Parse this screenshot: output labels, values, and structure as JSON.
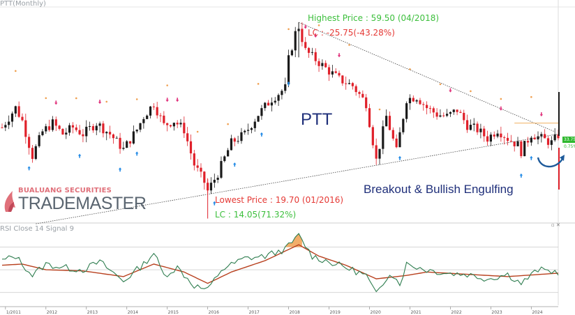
{
  "header": {
    "top_label": "PTT(Monthly)",
    "rsi_label": "RSI Close 14 Signal 9",
    "corner_controls": "▫ ✕"
  },
  "annotations": {
    "highest": "Highest Price : 59.50 (04/2018)",
    "highest_lc": "LC : -25.75(-43.28%)",
    "lowest": "Lowest Price : 19.70 (01/2016)",
    "lowest_lc": "LC : 14.05(71.32%)",
    "ticker": "PTT",
    "pattern": "Breakout & Bullish Engulfing"
  },
  "brand": {
    "line1": "BUALUANG SECURITIES",
    "line2": "TRADEMASTER"
  },
  "price_tags": {
    "last": "33.75",
    "pct": "0.75%"
  },
  "colors": {
    "up": "#1a1a1a",
    "down": "#e0202a",
    "rsi": "#2e7d4f",
    "signal": "#b8401e",
    "trend": "#444444",
    "overbought_fill": "#f0a050",
    "arrow_blue": "#1e88e5",
    "arrow_pink": "#e0307a",
    "swoosh": "#1e5a9a"
  },
  "chart_data": [
    {
      "type": "candlestick",
      "title": "PTT(Monthly)",
      "x_range": [
        "2010-12",
        "2024-09"
      ],
      "y_range": [
        14,
        63
      ],
      "x_ticks": [
        "1/2011",
        "2012",
        "2013",
        "2014",
        "2015",
        "2016",
        "2017",
        "2018",
        "2019",
        "2020",
        "2021",
        "2022",
        "2023",
        "2024"
      ],
      "last_price": 33.75,
      "highest": {
        "date": "2018-04",
        "price": 59.5
      },
      "lowest": {
        "date": "2016-01",
        "price": 19.7
      },
      "anchor_closes": [
        [
          "2010-12",
          35.5
        ],
        [
          "2011-04",
          40
        ],
        [
          "2011-06",
          37
        ],
        [
          "2011-09",
          29
        ],
        [
          "2011-12",
          34.5
        ],
        [
          "2012-03",
          36.5
        ],
        [
          "2012-06",
          34
        ],
        [
          "2012-09",
          35.5
        ],
        [
          "2012-12",
          34
        ],
        [
          "2013-04",
          36.5
        ],
        [
          "2013-08",
          34
        ],
        [
          "2013-12",
          30.5
        ],
        [
          "2014-04",
          35
        ],
        [
          "2014-06",
          38
        ],
        [
          "2014-09",
          41
        ],
        [
          "2014-12",
          36
        ],
        [
          "2015-03",
          37
        ],
        [
          "2015-06",
          35
        ],
        [
          "2015-09",
          27
        ],
        [
          "2015-12",
          23
        ],
        [
          "2016-01",
          21
        ],
        [
          "2016-04",
          25
        ],
        [
          "2016-08",
          32
        ],
        [
          "2016-12",
          34
        ],
        [
          "2017-04",
          38.5
        ],
        [
          "2017-08",
          42
        ],
        [
          "2017-12",
          44.5
        ],
        [
          "2018-01",
          51
        ],
        [
          "2018-03",
          57
        ],
        [
          "2018-04",
          58.5
        ],
        [
          "2018-06",
          53
        ],
        [
          "2018-09",
          51
        ],
        [
          "2018-12",
          49
        ],
        [
          "2019-04",
          46.5
        ],
        [
          "2019-08",
          45
        ],
        [
          "2019-12",
          41
        ],
        [
          "2020-03",
          28
        ],
        [
          "2020-06",
          38
        ],
        [
          "2020-09",
          30
        ],
        [
          "2020-12",
          42
        ],
        [
          "2021-03",
          42.5
        ],
        [
          "2021-06",
          40
        ],
        [
          "2021-09",
          38.5
        ],
        [
          "2021-12",
          38
        ],
        [
          "2022-03",
          39.5
        ],
        [
          "2022-06",
          36
        ],
        [
          "2022-09",
          35
        ],
        [
          "2022-12",
          33
        ],
        [
          "2023-03",
          35
        ],
        [
          "2023-06",
          33
        ],
        [
          "2023-09",
          31.5
        ],
        [
          "2023-10",
          30
        ],
        [
          "2024-01",
          34
        ],
        [
          "2024-04",
          33
        ],
        [
          "2024-07",
          32
        ],
        [
          "2024-09",
          33.75
        ]
      ],
      "trendlines": [
        {
          "from": [
            "2018-04",
            59.5
          ],
          "to": [
            "2024-08",
            34.5
          ]
        },
        {
          "from": [
            "2011-10",
            13.5
          ],
          "to": [
            "2024-09",
            34
          ]
        }
      ],
      "resistance_level": 36.5
    },
    {
      "type": "line",
      "title": "RSI Close 14 Signal 9",
      "y_range": [
        20,
        85
      ],
      "levels": [
        70,
        50,
        30
      ],
      "series": [
        {
          "name": "RSI",
          "anchors": [
            [
              "2010-12",
              58
            ],
            [
              "2011-04",
              62
            ],
            [
              "2011-09",
              45
            ],
            [
              "2012-01",
              55
            ],
            [
              "2012-06",
              52
            ],
            [
              "2012-12",
              50
            ],
            [
              "2013-05",
              57
            ],
            [
              "2013-12",
              40
            ],
            [
              "2014-06",
              55
            ],
            [
              "2014-09",
              65
            ],
            [
              "2014-12",
              45
            ],
            [
              "2015-04",
              52
            ],
            [
              "2015-09",
              36
            ],
            [
              "2016-01",
              32
            ],
            [
              "2016-05",
              50
            ],
            [
              "2016-12",
              60
            ],
            [
              "2017-06",
              62
            ],
            [
              "2017-12",
              68
            ],
            [
              "2018-04",
              80
            ],
            [
              "2018-08",
              62
            ],
            [
              "2018-12",
              58
            ],
            [
              "2019-06",
              52
            ],
            [
              "2019-12",
              45
            ],
            [
              "2020-03",
              28
            ],
            [
              "2020-07",
              48
            ],
            [
              "2020-10",
              38
            ],
            [
              "2020-12",
              55
            ],
            [
              "2021-06",
              50
            ],
            [
              "2021-12",
              47
            ],
            [
              "2022-06",
              46
            ],
            [
              "2022-12",
              42
            ],
            [
              "2023-06",
              46
            ],
            [
              "2023-10",
              38
            ],
            [
              "2024-03",
              50
            ],
            [
              "2024-09",
              48
            ]
          ]
        },
        {
          "name": "Signal",
          "anchors": [
            [
              "2010-12",
              54
            ],
            [
              "2011-06",
              55
            ],
            [
              "2012-01",
              50
            ],
            [
              "2012-12",
              49
            ],
            [
              "2013-12",
              44
            ],
            [
              "2014-09",
              55
            ],
            [
              "2015-06",
              48
            ],
            [
              "2016-01",
              38
            ],
            [
              "2016-08",
              48
            ],
            [
              "2017-06",
              58
            ],
            [
              "2018-04",
              72
            ],
            [
              "2018-10",
              62
            ],
            [
              "2019-06",
              54
            ],
            [
              "2020-03",
              42
            ],
            [
              "2020-12",
              45
            ],
            [
              "2021-06",
              48
            ],
            [
              "2022-06",
              46
            ],
            [
              "2023-06",
              44
            ],
            [
              "2024-09",
              47
            ]
          ]
        }
      ]
    }
  ]
}
